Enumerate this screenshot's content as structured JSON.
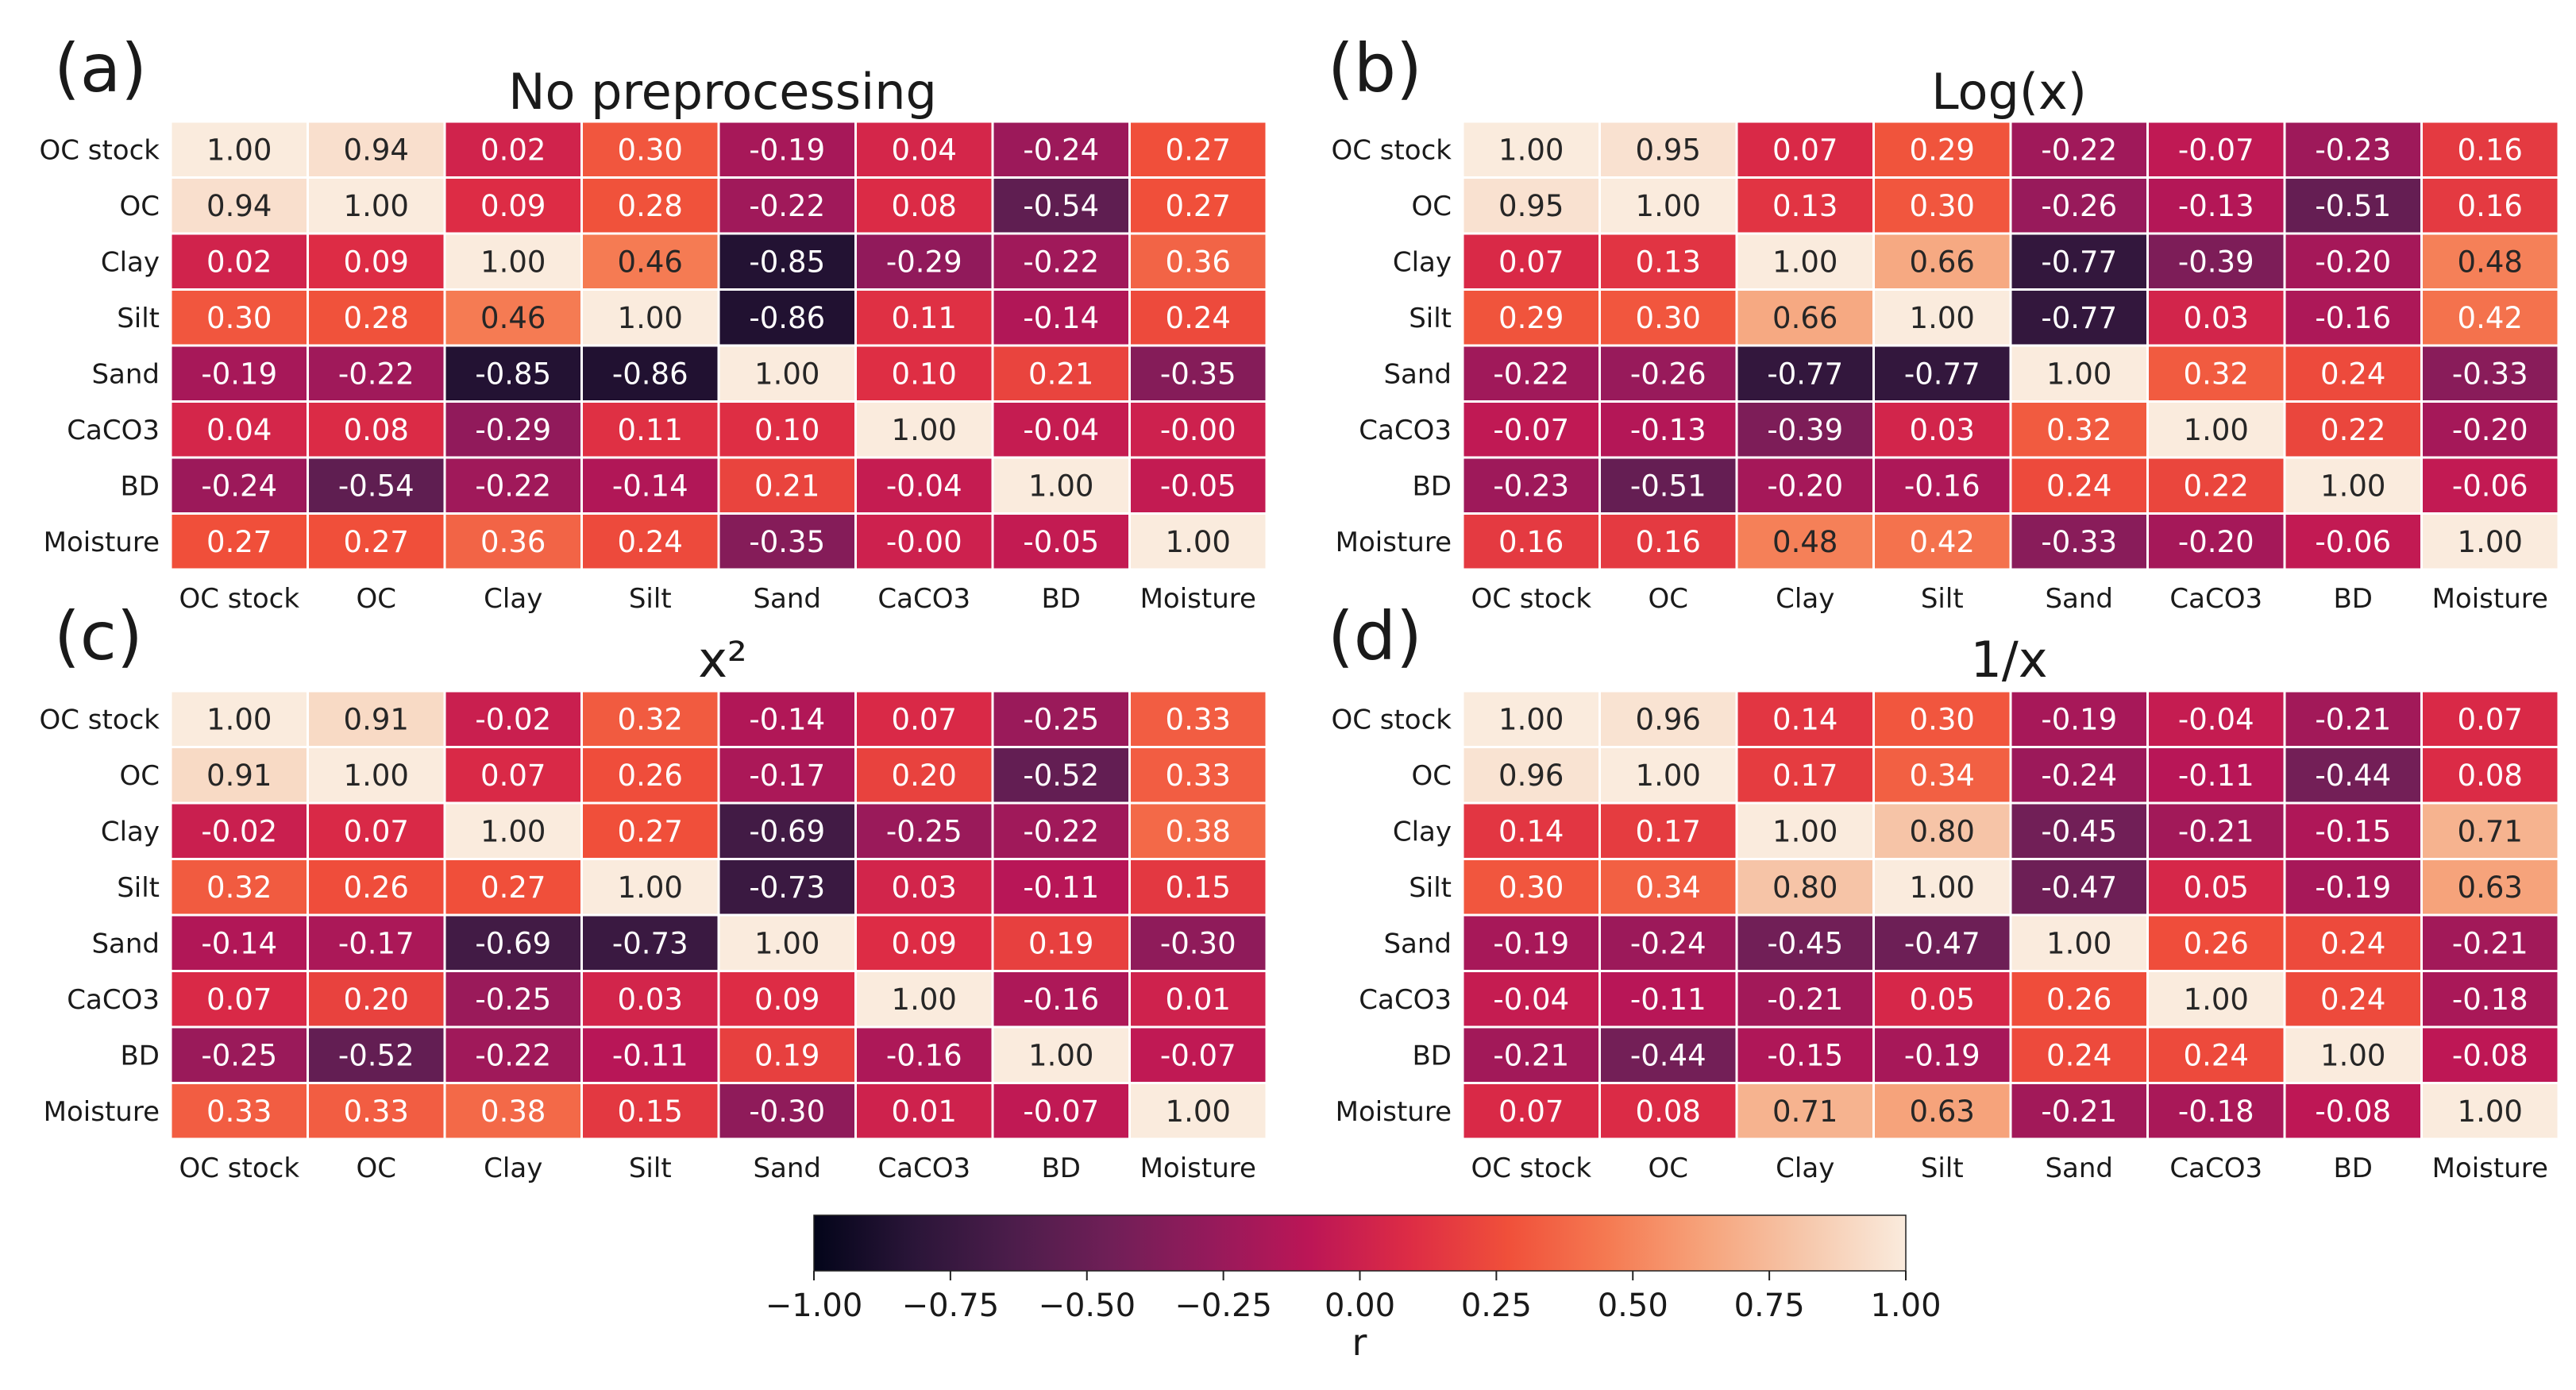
{
  "chart_data": [
    {
      "type": "heatmap",
      "panel_label": "(a)",
      "title": "No preprocessing",
      "rows": [
        "OC stock",
        "OC",
        "Clay",
        "Silt",
        "Sand",
        "CaCO3",
        "BD",
        "Moisture"
      ],
      "cols": [
        "OC stock",
        "OC",
        "Clay",
        "Silt",
        "Sand",
        "CaCO3",
        "BD",
        "Moisture"
      ],
      "values": [
        [
          "1.00",
          "0.94",
          "0.02",
          "0.30",
          "-0.19",
          "0.04",
          "-0.24",
          "0.27"
        ],
        [
          "0.94",
          "1.00",
          "0.09",
          "0.28",
          "-0.22",
          "0.08",
          "-0.54",
          "0.27"
        ],
        [
          "0.02",
          "0.09",
          "1.00",
          "0.46",
          "-0.85",
          "-0.29",
          "-0.22",
          "0.36"
        ],
        [
          "0.30",
          "0.28",
          "0.46",
          "1.00",
          "-0.86",
          "0.11",
          "-0.14",
          "0.24"
        ],
        [
          "-0.19",
          "-0.22",
          "-0.85",
          "-0.86",
          "1.00",
          "0.10",
          "0.21",
          "-0.35"
        ],
        [
          "0.04",
          "0.08",
          "-0.29",
          "0.11",
          "0.10",
          "1.00",
          "-0.04",
          "-0.00"
        ],
        [
          "-0.24",
          "-0.54",
          "-0.22",
          "-0.14",
          "0.21",
          "-0.04",
          "1.00",
          "-0.05"
        ],
        [
          "0.27",
          "0.27",
          "0.36",
          "0.24",
          "-0.35",
          "-0.00",
          "-0.05",
          "1.00"
        ]
      ]
    },
    {
      "type": "heatmap",
      "panel_label": "(b)",
      "title": "Log(x)",
      "rows": [
        "OC stock",
        "OC",
        "Clay",
        "Silt",
        "Sand",
        "CaCO3",
        "BD",
        "Moisture"
      ],
      "cols": [
        "OC stock",
        "OC",
        "Clay",
        "Silt",
        "Sand",
        "CaCO3",
        "BD",
        "Moisture"
      ],
      "values": [
        [
          "1.00",
          "0.95",
          "0.07",
          "0.29",
          "-0.22",
          "-0.07",
          "-0.23",
          "0.16"
        ],
        [
          "0.95",
          "1.00",
          "0.13",
          "0.30",
          "-0.26",
          "-0.13",
          "-0.51",
          "0.16"
        ],
        [
          "0.07",
          "0.13",
          "1.00",
          "0.66",
          "-0.77",
          "-0.39",
          "-0.20",
          "0.48"
        ],
        [
          "0.29",
          "0.30",
          "0.66",
          "1.00",
          "-0.77",
          "0.03",
          "-0.16",
          "0.42"
        ],
        [
          "-0.22",
          "-0.26",
          "-0.77",
          "-0.77",
          "1.00",
          "0.32",
          "0.24",
          "-0.33"
        ],
        [
          "-0.07",
          "-0.13",
          "-0.39",
          "0.03",
          "0.32",
          "1.00",
          "0.22",
          "-0.20"
        ],
        [
          "-0.23",
          "-0.51",
          "-0.20",
          "-0.16",
          "0.24",
          "0.22",
          "1.00",
          "-0.06"
        ],
        [
          "0.16",
          "0.16",
          "0.48",
          "0.42",
          "-0.33",
          "-0.20",
          "-0.06",
          "1.00"
        ]
      ]
    },
    {
      "type": "heatmap",
      "panel_label": "(c)",
      "title": "x²",
      "rows": [
        "OC stock",
        "OC",
        "Clay",
        "Silt",
        "Sand",
        "CaCO3",
        "BD",
        "Moisture"
      ],
      "cols": [
        "OC stock",
        "OC",
        "Clay",
        "Silt",
        "Sand",
        "CaCO3",
        "BD",
        "Moisture"
      ],
      "values": [
        [
          "1.00",
          "0.91",
          "-0.02",
          "0.32",
          "-0.14",
          "0.07",
          "-0.25",
          "0.33"
        ],
        [
          "0.91",
          "1.00",
          "0.07",
          "0.26",
          "-0.17",
          "0.20",
          "-0.52",
          "0.33"
        ],
        [
          "-0.02",
          "0.07",
          "1.00",
          "0.27",
          "-0.69",
          "-0.25",
          "-0.22",
          "0.38"
        ],
        [
          "0.32",
          "0.26",
          "0.27",
          "1.00",
          "-0.73",
          "0.03",
          "-0.11",
          "0.15"
        ],
        [
          "-0.14",
          "-0.17",
          "-0.69",
          "-0.73",
          "1.00",
          "0.09",
          "0.19",
          "-0.30"
        ],
        [
          "0.07",
          "0.20",
          "-0.25",
          "0.03",
          "0.09",
          "1.00",
          "-0.16",
          "0.01"
        ],
        [
          "-0.25",
          "-0.52",
          "-0.22",
          "-0.11",
          "0.19",
          "-0.16",
          "1.00",
          "-0.07"
        ],
        [
          "0.33",
          "0.33",
          "0.38",
          "0.15",
          "-0.30",
          "0.01",
          "-0.07",
          "1.00"
        ]
      ]
    },
    {
      "type": "heatmap",
      "panel_label": "(d)",
      "title": "1/x",
      "rows": [
        "OC stock",
        "OC",
        "Clay",
        "Silt",
        "Sand",
        "CaCO3",
        "BD",
        "Moisture"
      ],
      "cols": [
        "OC stock",
        "OC",
        "Clay",
        "Silt",
        "Sand",
        "CaCO3",
        "BD",
        "Moisture"
      ],
      "values": [
        [
          "1.00",
          "0.96",
          "0.14",
          "0.30",
          "-0.19",
          "-0.04",
          "-0.21",
          "0.07"
        ],
        [
          "0.96",
          "1.00",
          "0.17",
          "0.34",
          "-0.24",
          "-0.11",
          "-0.44",
          "0.08"
        ],
        [
          "0.14",
          "0.17",
          "1.00",
          "0.80",
          "-0.45",
          "-0.21",
          "-0.15",
          "0.71"
        ],
        [
          "0.30",
          "0.34",
          "0.80",
          "1.00",
          "-0.47",
          "0.05",
          "-0.19",
          "0.63"
        ],
        [
          "-0.19",
          "-0.24",
          "-0.45",
          "-0.47",
          "1.00",
          "0.26",
          "0.24",
          "-0.21"
        ],
        [
          "-0.04",
          "-0.11",
          "-0.21",
          "0.05",
          "0.26",
          "1.00",
          "0.24",
          "-0.18"
        ],
        [
          "-0.21",
          "-0.44",
          "-0.15",
          "-0.19",
          "0.24",
          "0.24",
          "1.00",
          "-0.08"
        ],
        [
          "0.07",
          "0.08",
          "0.71",
          "0.63",
          "-0.21",
          "-0.18",
          "-0.08",
          "1.00"
        ]
      ]
    }
  ],
  "colorbar": {
    "label": "r",
    "range": [
      -1.0,
      1.0
    ],
    "ticks": [
      "−1.00",
      "−0.75",
      "−0.50",
      "−0.25",
      "0.00",
      "0.25",
      "0.50",
      "0.75",
      "1.00"
    ],
    "colormap": "rocket",
    "colors": [
      "#03051a",
      "#2a1538",
      "#4c1d4b",
      "#701f57",
      "#951a5b",
      "#bc1656",
      "#dd2c45",
      "#f0503a",
      "#f57a52",
      "#f6a47c",
      "#f6c8ac",
      "#faebdd"
    ]
  }
}
